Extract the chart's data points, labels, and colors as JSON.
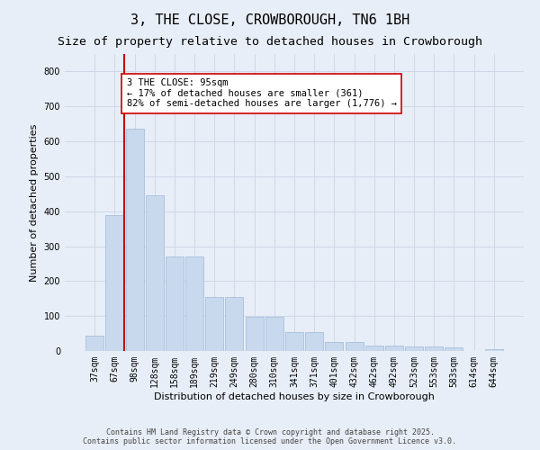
{
  "title": "3, THE CLOSE, CROWBOROUGH, TN6 1BH",
  "subtitle": "Size of property relative to detached houses in Crowborough",
  "xlabel": "Distribution of detached houses by size in Crowborough",
  "ylabel": "Number of detached properties",
  "bar_labels": [
    "37sqm",
    "67sqm",
    "98sqm",
    "128sqm",
    "158sqm",
    "189sqm",
    "219sqm",
    "249sqm",
    "280sqm",
    "310sqm",
    "341sqm",
    "371sqm",
    "401sqm",
    "432sqm",
    "462sqm",
    "492sqm",
    "523sqm",
    "553sqm",
    "583sqm",
    "614sqm",
    "644sqm"
  ],
  "bar_values": [
    45,
    390,
    635,
    445,
    270,
    270,
    155,
    155,
    97,
    97,
    55,
    55,
    27,
    27,
    15,
    15,
    13,
    13,
    10,
    0,
    5
  ],
  "bar_color": "#c8d9ed",
  "bar_edgecolor": "#a0b8d8",
  "grid_color": "#d0d8e8",
  "background_color": "#e8eef7",
  "vline_color": "#cc0000",
  "vline_x": 1.5,
  "annotation_text": "3 THE CLOSE: 95sqm\n← 17% of detached houses are smaller (361)\n82% of semi-detached houses are larger (1,776) →",
  "annotation_box_edgecolor": "#cc0000",
  "annotation_box_facecolor": "#ffffff",
  "footer_text": "Contains HM Land Registry data © Crown copyright and database right 2025.\nContains public sector information licensed under the Open Government Licence v3.0.",
  "ylim": [
    0,
    850
  ],
  "yticks": [
    0,
    100,
    200,
    300,
    400,
    500,
    600,
    700,
    800
  ],
  "title_fontsize": 11,
  "subtitle_fontsize": 9.5,
  "axis_label_fontsize": 8,
  "tick_fontsize": 7,
  "annotation_fontsize": 7.5,
  "footer_fontsize": 6
}
